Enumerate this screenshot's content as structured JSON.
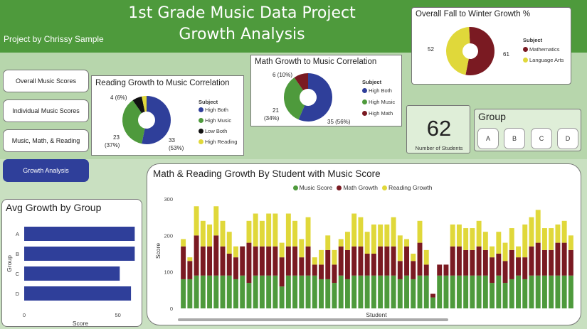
{
  "header": {
    "title_line1": "1st Grade Music Data Project",
    "title_line2": "Growth Analysis",
    "byline": "Project by Chrissy Sample"
  },
  "nav": [
    {
      "label": "Overall Music Scores"
    },
    {
      "label": "Individual Music Scores"
    },
    {
      "label": "Music, Math, & Reading"
    },
    {
      "label": "Growth Analysis",
      "active": true
    }
  ],
  "reading_card": {
    "title": "Reading Growth to Music Correlation",
    "legend_title": "Subject",
    "labels": {
      "high_both": "33\n(53%)",
      "high_music": "23\n(37%)",
      "low_both": "4 (6%)"
    },
    "label_text": {
      "high_both_a": "33",
      "high_both_b": "(53%)",
      "high_music_a": "23",
      "high_music_b": "(37%)",
      "low_both": "4 (6%)"
    }
  },
  "math_card": {
    "title": "Math Growth to Music Correlation",
    "legend_title": "Subject",
    "label_text": {
      "high_both": "35 (56%)",
      "high_music_a": "21",
      "high_music_b": "(34%)",
      "high_math": "6 (10%)"
    }
  },
  "overall_card": {
    "title": "Overall Fall to Winter Growth %",
    "legend_title": "Subject",
    "label_text": {
      "math": "61",
      "language": "52"
    }
  },
  "students_card": {
    "value": "62",
    "label": "Number of Students"
  },
  "group_card": {
    "title": "Group",
    "buttons": [
      "A",
      "B",
      "C",
      "D"
    ]
  },
  "colors": {
    "green": "#4e9a3c",
    "navy": "#2f3f9a",
    "maroon": "#7a1a22",
    "yellow": "#e0d83a",
    "black": "#111111"
  },
  "chart_data": [
    {
      "type": "pie",
      "title": "Reading Growth to Music Correlation",
      "legend_title": "Subject",
      "slices": [
        {
          "name": "High Both",
          "value": 33,
          "percent": 53,
          "color": "#2f3f9a"
        },
        {
          "name": "High Music",
          "value": 23,
          "percent": 37,
          "color": "#4e9a3c"
        },
        {
          "name": "Low Both",
          "value": 4,
          "percent": 6,
          "color": "#111111"
        },
        {
          "name": "High Reading",
          "value": 2,
          "percent": 3,
          "color": "#e0d83a"
        }
      ]
    },
    {
      "type": "pie",
      "title": "Math Growth to Music Correlation",
      "legend_title": "Subject",
      "slices": [
        {
          "name": "High Both",
          "value": 35,
          "percent": 56,
          "color": "#2f3f9a"
        },
        {
          "name": "High Music",
          "value": 21,
          "percent": 34,
          "color": "#4e9a3c"
        },
        {
          "name": "High Math",
          "value": 6,
          "percent": 10,
          "color": "#7a1a22"
        }
      ]
    },
    {
      "type": "pie",
      "title": "Overall Fall to Winter Growth %",
      "legend_title": "Subject",
      "slices": [
        {
          "name": "Mathematics",
          "value": 61,
          "color": "#7a1a22"
        },
        {
          "name": "Language Arts",
          "value": 52,
          "color": "#e0d83a"
        }
      ]
    },
    {
      "type": "bar",
      "orientation": "horizontal",
      "title": "Avg Growth by Group",
      "categories": [
        "A",
        "B",
        "C",
        "D"
      ],
      "values": [
        59,
        59,
        51,
        57
      ],
      "xlabel": "Score",
      "ylabel": "Group",
      "xlim": [
        0,
        60
      ],
      "xticks": [
        0,
        50
      ],
      "color": "#2f3f9a"
    },
    {
      "type": "bar",
      "stacked": true,
      "title": "Math & Reading Growth By Student with Music Score",
      "xlabel": "Student",
      "ylabel": "Score",
      "ylim": [
        0,
        300
      ],
      "yticks": [
        0,
        100,
        200,
        300
      ],
      "legend": "top-center",
      "series": [
        {
          "name": "Music Score",
          "color": "#4e9a3c",
          "values": [
            80,
            80,
            90,
            90,
            90,
            90,
            90,
            90,
            80,
            90,
            70,
            90,
            90,
            90,
            90,
            60,
            90,
            90,
            90,
            90,
            90,
            80,
            80,
            70,
            90,
            80,
            90,
            90,
            90,
            90,
            90,
            90,
            90,
            80,
            90,
            80,
            90,
            90,
            30,
            90,
            90,
            90,
            90,
            90,
            90,
            90,
            90,
            70,
            90,
            70,
            80,
            90,
            80,
            90,
            90,
            90,
            90,
            90,
            90,
            90
          ]
        },
        {
          "name": "Math Growth",
          "color": "#7a1a22",
          "values": [
            90,
            50,
            110,
            80,
            80,
            110,
            80,
            60,
            60,
            80,
            110,
            80,
            80,
            80,
            80,
            80,
            80,
            80,
            50,
            80,
            30,
            40,
            80,
            50,
            80,
            80,
            80,
            80,
            60,
            60,
            80,
            80,
            80,
            50,
            80,
            50,
            90,
            30,
            10,
            30,
            30,
            80,
            80,
            70,
            70,
            80,
            70,
            70,
            60,
            60,
            80,
            50,
            60,
            80,
            90,
            70,
            70,
            90,
            90,
            70
          ]
        },
        {
          "name": "Reading Growth",
          "color": "#e0d83a",
          "values": [
            20,
            10,
            80,
            70,
            60,
            80,
            70,
            60,
            30,
            0,
            60,
            90,
            70,
            90,
            90,
            40,
            90,
            70,
            50,
            80,
            20,
            40,
            40,
            40,
            20,
            50,
            90,
            80,
            60,
            80,
            60,
            60,
            80,
            70,
            20,
            20,
            60,
            40,
            0,
            0,
            0,
            60,
            60,
            60,
            60,
            70,
            50,
            30,
            60,
            50,
            60,
            30,
            90,
            80,
            90,
            60,
            60,
            50,
            60,
            40
          ]
        }
      ]
    }
  ]
}
